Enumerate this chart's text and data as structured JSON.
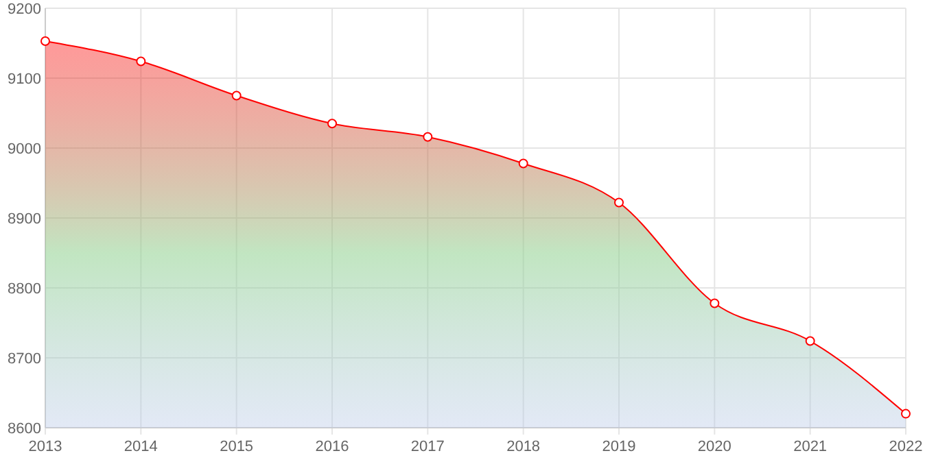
{
  "chart_data": {
    "type": "area",
    "x": [
      2013,
      2014,
      2015,
      2016,
      2017,
      2018,
      2019,
      2020,
      2021,
      2022
    ],
    "series": [
      {
        "color": "#ff0000",
        "values": [
          9153,
          9124,
          9075,
          9035,
          9016,
          8978,
          8922,
          8778,
          8724,
          8620
        ]
      }
    ],
    "xlim": [
      2013,
      2022
    ],
    "xticks": [
      2013,
      2014,
      2015,
      2016,
      2017,
      2018,
      2019,
      2020,
      2021,
      2022
    ],
    "ylim": [
      8600,
      9200
    ],
    "yticks": [
      8600,
      8700,
      8800,
      8900,
      9000,
      9100,
      9200
    ],
    "grid": true,
    "marker": "circle"
  }
}
